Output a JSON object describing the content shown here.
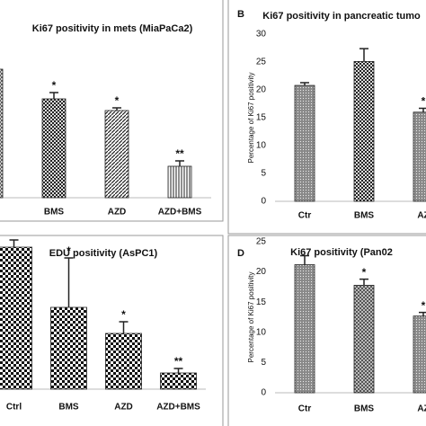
{
  "chart_data": [
    {
      "type": "bar",
      "title": "Ki67 positivity in mets (MiaPaCa2)",
      "categories": [
        null,
        "BMS",
        "AZD",
        "AZD+BMS"
      ],
      "values": [
        143,
        110,
        97,
        35
      ],
      "errors": [
        10,
        7,
        3,
        6
      ],
      "annotations": [
        null,
        "*",
        "*",
        "**"
      ],
      "ylim": [
        0,
        160
      ]
    },
    {
      "type": "bar",
      "panel": "B",
      "title": "Ki67 positivity in pancreatic tumo",
      "y_label": "Percentage of Ki67 positivity",
      "categories": [
        "Ctr",
        "BMS",
        "AZ"
      ],
      "values": [
        20.8,
        25.1,
        16
      ],
      "errors": [
        0.5,
        2.3,
        0.7
      ],
      "annotations": [
        null,
        null,
        "*"
      ],
      "ylim": [
        0,
        30
      ],
      "yticks": [
        0,
        5,
        10,
        15,
        20,
        25,
        30
      ]
    },
    {
      "type": "bar",
      "title": "EDU positivity (AsPC1)",
      "categories": [
        "Ctrl",
        "BMS",
        "AZD",
        "AZD+BMS"
      ],
      "values": [
        158,
        91,
        62,
        18
      ],
      "errors": [
        8,
        55,
        13,
        5
      ],
      "annotations": [
        null,
        "*",
        "*",
        "**"
      ],
      "ylim": [
        0,
        180
      ]
    },
    {
      "type": "bar",
      "panel": "D",
      "title": "Ki67 positivity (Pan02",
      "y_label": "Percentage of Ki67 positivity",
      "categories": [
        "Ctr",
        "BMS",
        "AZ"
      ],
      "values": [
        21.2,
        17.8,
        12.7
      ],
      "errors": [
        1.5,
        1,
        0.6
      ],
      "annotations": [
        null,
        "*",
        "*"
      ],
      "ylim": [
        0,
        25
      ],
      "yticks": [
        0,
        5,
        10,
        15,
        20,
        25
      ]
    }
  ]
}
